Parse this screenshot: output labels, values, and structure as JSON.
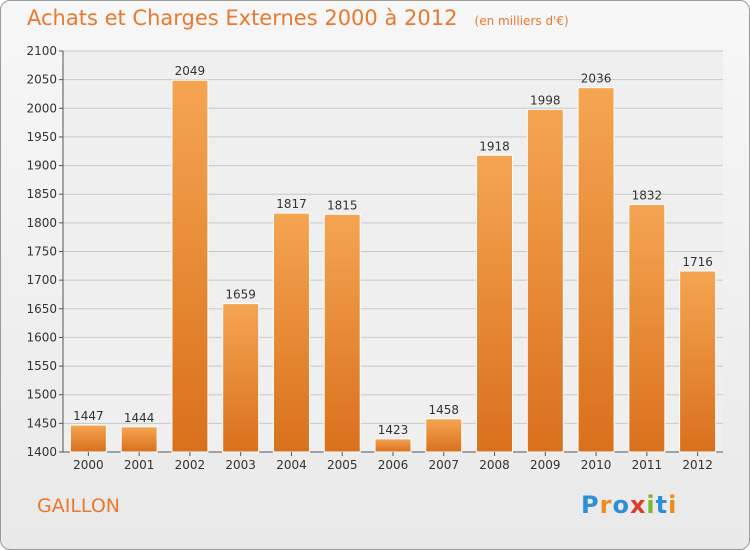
{
  "title": "Achats et Charges Externes 2000 à 2012",
  "subtitle": "(en milliers d'€)",
  "place": "GAILLON",
  "logo": {
    "text": "Proxiti",
    "colors": [
      "#2e8fd6",
      "#f08a1c",
      "#2e8fd6",
      "#e23a2a",
      "#7cb82f",
      "#2e8fd6",
      "#f08a1c"
    ]
  },
  "colors": {
    "bar_top": "#f5a552",
    "bar_bottom": "#d9701c",
    "bar_edge": "#ffffff",
    "grid": "#c8c8c8",
    "axis": "#555555",
    "accent": "#e8792e"
  },
  "chart_data": {
    "type": "bar",
    "categories": [
      "2000",
      "2001",
      "2002",
      "2003",
      "2004",
      "2005",
      "2006",
      "2007",
      "2008",
      "2009",
      "2010",
      "2011",
      "2012"
    ],
    "values": [
      1447,
      1444,
      2049,
      1659,
      1817,
      1815,
      1423,
      1458,
      1918,
      1998,
      2036,
      1832,
      1716
    ],
    "ylim": [
      1400,
      2100
    ],
    "yticks": [
      1400,
      1450,
      1500,
      1550,
      1600,
      1650,
      1700,
      1750,
      1800,
      1850,
      1900,
      1950,
      2000,
      2050,
      2100
    ],
    "grid": true
  }
}
